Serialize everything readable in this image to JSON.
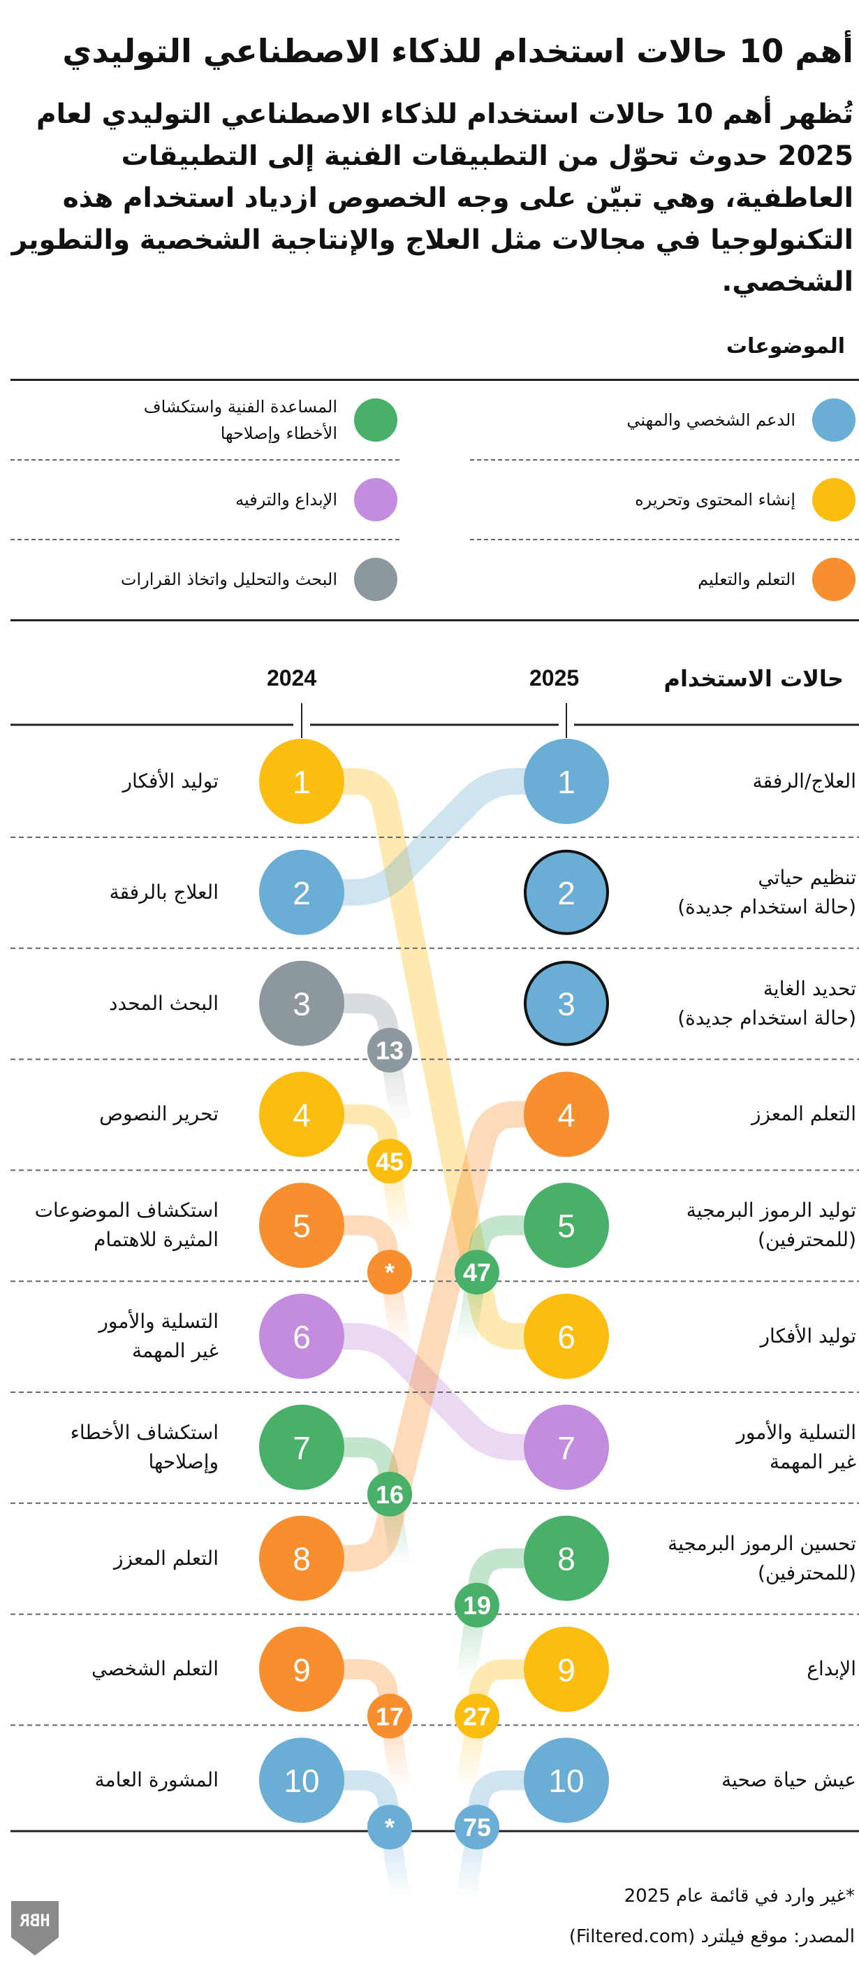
{
  "title": "أهم 10 حالات استخدام للذكاء الاصطناعي التوليدي",
  "subtitle": "تُظهر أهم 10 حالات استخدام للذكاء الاصطناعي التوليدي لعام 2025 حدوث تحوّل من التطبيقات الفنية إلى التطبيقات العاطفية، وهي تبيّن على وجه الخصوص ازدياد استخدام هذه التكنولوجيا في مجالات مثل العلاج والإنتاجية الشخصية والتطوير الشخصي.",
  "legend": {
    "title": "الموضوعات",
    "items": [
      {
        "key": "blue",
        "label": "الدعم الشخصي والمهني",
        "color": "#6AAED6"
      },
      {
        "key": "green",
        "label": "المساعدة الفنية واستكشاف\nالأخطاء وإصلاحها",
        "color": "#49B06A"
      },
      {
        "key": "yellow",
        "label": "إنشاء المحتوى وتحريره",
        "color": "#FBBD0F"
      },
      {
        "key": "purple",
        "label": "الإبداع والترفيه",
        "color": "#C38CDF"
      },
      {
        "key": "orange",
        "label": "التعلم والتعليم",
        "color": "#F78F2E"
      },
      {
        "key": "gray",
        "label": "البحث والتحليل واتخاذ القرارات",
        "color": "#8D989E"
      }
    ]
  },
  "chart_data": {
    "type": "line",
    "subtype": "rank-slope",
    "column_header": "حالات الاستخدام",
    "year_left": "2024",
    "year_right": "2025",
    "list_2024": [
      {
        "rank": "1",
        "label": "توليد الأفكار",
        "topic": "yellow",
        "rank_2025": 6
      },
      {
        "rank": "2",
        "label": "العلاج بالرفقة",
        "topic": "blue",
        "rank_2025": 1
      },
      {
        "rank": "3",
        "label": "البحث المحدد",
        "topic": "gray",
        "rank_2025": "13"
      },
      {
        "rank": "4",
        "label": "تحرير النصوص",
        "topic": "yellow",
        "rank_2025": "45"
      },
      {
        "rank": "5",
        "label": "استكشاف الموضوعات\nالمثيرة للاهتمام",
        "topic": "orange",
        "rank_2025": "*"
      },
      {
        "rank": "6",
        "label": "التسلية والأمور\nغير المهمة",
        "topic": "purple",
        "rank_2025": 7
      },
      {
        "rank": "7",
        "label": "استكشاف الأخطاء\nوإصلاحها",
        "topic": "green",
        "rank_2025": "16"
      },
      {
        "rank": "8",
        "label": "التعلم المعزز",
        "topic": "orange",
        "rank_2025": 4
      },
      {
        "rank": "9",
        "label": "التعلم الشخصي",
        "topic": "orange",
        "rank_2025": "17"
      },
      {
        "rank": "10",
        "label": "المشورة العامة",
        "topic": "blue",
        "rank_2025": "*"
      }
    ],
    "list_2025": [
      {
        "rank": "1",
        "label": "العلاج/الرفقة",
        "topic": "blue",
        "is_new": false,
        "rank_2024": 2
      },
      {
        "rank": "2",
        "label": "تنظيم حياتي\n(حالة استخدام جديدة)",
        "topic": "blue",
        "is_new": true,
        "rank_2024": null
      },
      {
        "rank": "3",
        "label": "تحديد الغاية\n(حالة استخدام جديدة)",
        "topic": "blue",
        "is_new": true,
        "rank_2024": null
      },
      {
        "rank": "4",
        "label": "التعلم المعزز",
        "topic": "orange",
        "is_new": false,
        "rank_2024": 8
      },
      {
        "rank": "5",
        "label": "توليد الرموز البرمجية\n(للمحترفين)",
        "topic": "green",
        "is_new": false,
        "rank_2024": "47"
      },
      {
        "rank": "6",
        "label": "توليد الأفكار",
        "topic": "yellow",
        "is_new": false,
        "rank_2024": 1
      },
      {
        "rank": "7",
        "label": "التسلية والأمور\nغير المهمة",
        "topic": "purple",
        "is_new": false,
        "rank_2024": 6
      },
      {
        "rank": "8",
        "label": "تحسين الرموز البرمجية\n(للمحترفين)",
        "topic": "green",
        "is_new": false,
        "rank_2024": "19"
      },
      {
        "rank": "9",
        "label": "الإبداع",
        "topic": "yellow",
        "is_new": false,
        "rank_2024": "27"
      },
      {
        "rank": "10",
        "label": "عيش حياة صحية",
        "topic": "blue",
        "is_new": false,
        "rank_2024": "75"
      }
    ]
  },
  "footnote": "*غير وارد في قائمة عام 2025",
  "source": "المصدر: موقع فيلترد (Filtered.com)",
  "logo_text": "HBR"
}
